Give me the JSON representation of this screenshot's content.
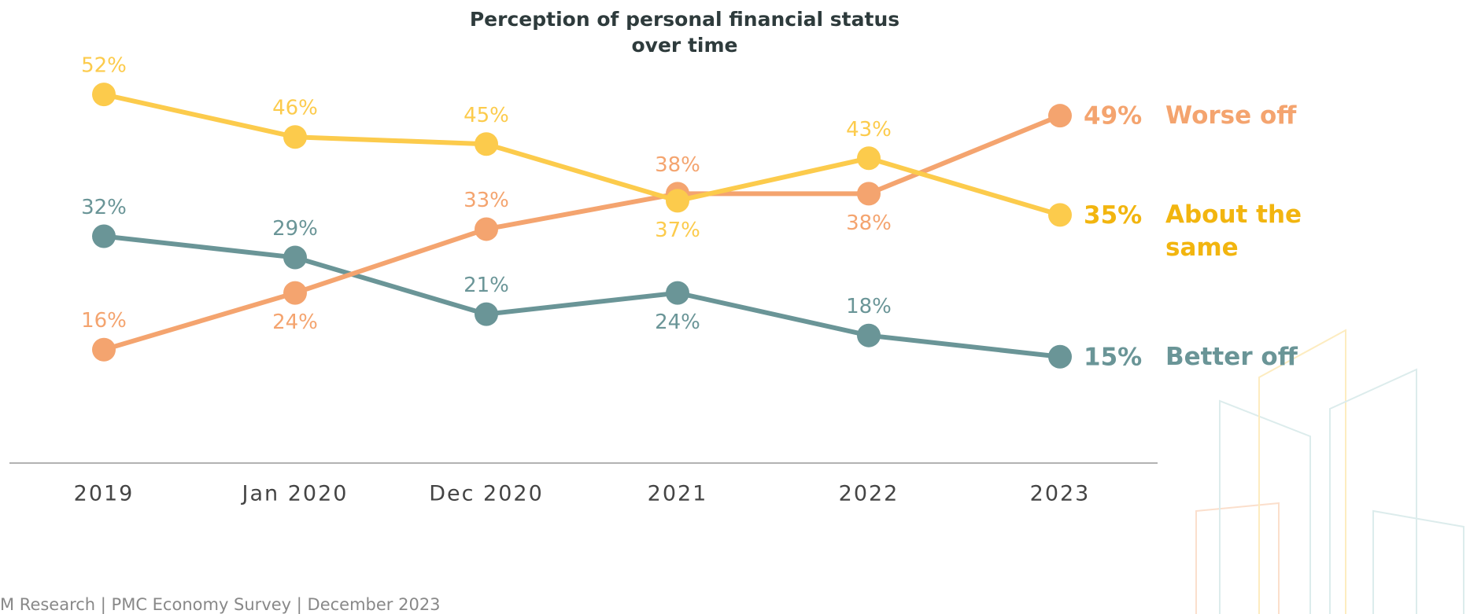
{
  "chart_data": {
    "type": "line",
    "title": "Perception of personal financial status over time",
    "categories": [
      "2019",
      "Jan 2020",
      "Dec 2020",
      "2021",
      "2022",
      "2023"
    ],
    "series": [
      {
        "name": "Better off",
        "color": "#6a9597",
        "values": [
          32,
          29,
          21,
          24,
          18,
          15
        ],
        "value_labels": [
          "32%",
          "29%",
          "21%",
          "24%",
          "18%",
          "15%"
        ]
      },
      {
        "name": "Worse off",
        "color": "#f4a46f",
        "values": [
          16,
          24,
          33,
          38,
          38,
          49
        ],
        "value_labels": [
          "16%",
          "24%",
          "33%",
          "38%",
          "38%",
          "49%"
        ]
      },
      {
        "name": "About the same",
        "color": "#fccb4c",
        "values": [
          52,
          46,
          45,
          37,
          43,
          35
        ],
        "value_labels": [
          "52%",
          "46%",
          "45%",
          "37%",
          "43%",
          "35%"
        ]
      }
    ],
    "ylim": [
      0,
      60
    ],
    "footer": "M Research | PMC Economy Survey | December 2023"
  }
}
